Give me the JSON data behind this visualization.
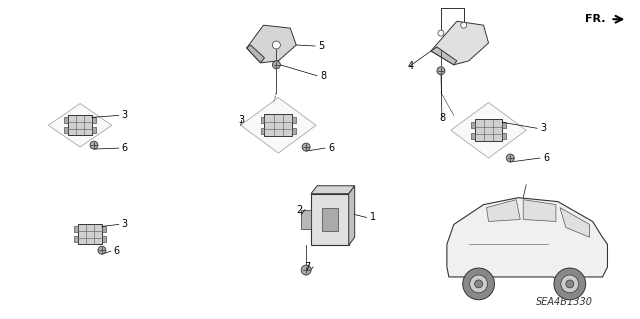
{
  "background_color": "#ffffff",
  "fig_width": 6.4,
  "fig_height": 3.19,
  "dpi": 100,
  "diagram_ref": "SEA4B1330",
  "fr_label": "FR.",
  "label_fontsize": 7,
  "ref_fontsize": 7,
  "line_color": "#333333",
  "component_fill": "#cccccc",
  "component_edge": "#333333"
}
